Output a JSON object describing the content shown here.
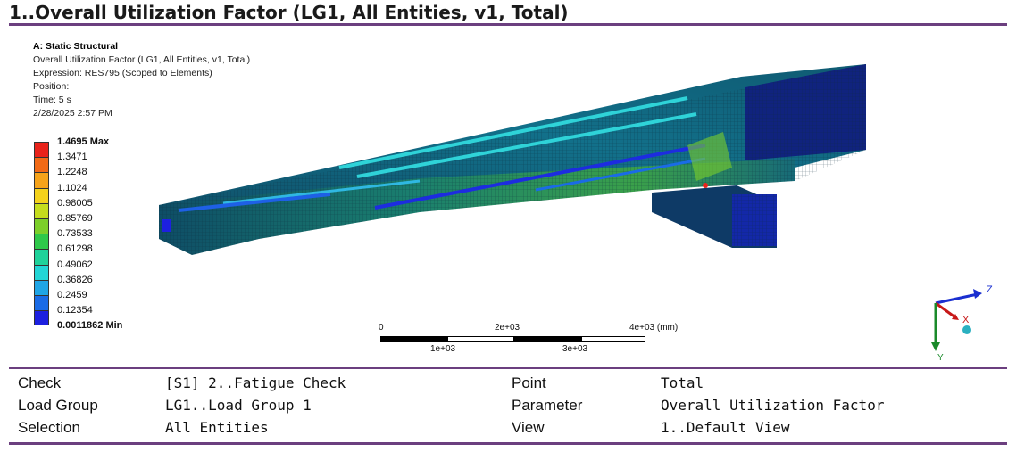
{
  "title": "1..Overall Utilization Factor (LG1, All Entities, v1, Total)",
  "info": {
    "system": "A: Static Structural",
    "result": "Overall Utilization Factor (LG1, All Entities, v1, Total)",
    "expression": "Expression: RES795 (Scoped to Elements)",
    "position": "Position:",
    "time": "Time: 5 s",
    "date": "2/28/2025 2:57 PM"
  },
  "legend": {
    "max_label": "1.4695 Max",
    "min_label": "0.0011862 Min",
    "labels": [
      "1.4695 Max",
      "1.3471",
      "1.2248",
      "1.1024",
      "0.98005",
      "0.85769",
      "0.73533",
      "0.61298",
      "0.49062",
      "0.36826",
      "0.2459",
      "0.12354",
      "0.0011862 Min"
    ],
    "colors": [
      "#e8231b",
      "#f26a16",
      "#f6a31a",
      "#f4d21c",
      "#c5dd1e",
      "#7ccf2a",
      "#2fc84a",
      "#1fd29a",
      "#22d5d5",
      "#1fa5e6",
      "#1a6be6",
      "#1d20e0"
    ]
  },
  "scale_bar": {
    "ticks_top": [
      "0",
      "2e+03",
      "4e+03 (mm)"
    ],
    "ticks_bottom": [
      "1e+03",
      "3e+03"
    ]
  },
  "axes": {
    "z": "Z",
    "x": "X",
    "y": "Y"
  },
  "table": {
    "rows": [
      {
        "k1": "Check",
        "v1": "[S1] 2..Fatigue Check",
        "k2": "Point",
        "v2": "Total"
      },
      {
        "k1": "Load Group",
        "v1": "LG1..Load Group 1",
        "k2": "Parameter",
        "v2": "Overall Utilization Factor"
      },
      {
        "k1": "Selection",
        "v1": "All Entities",
        "k2": "View",
        "v2": "1..Default View"
      }
    ]
  }
}
